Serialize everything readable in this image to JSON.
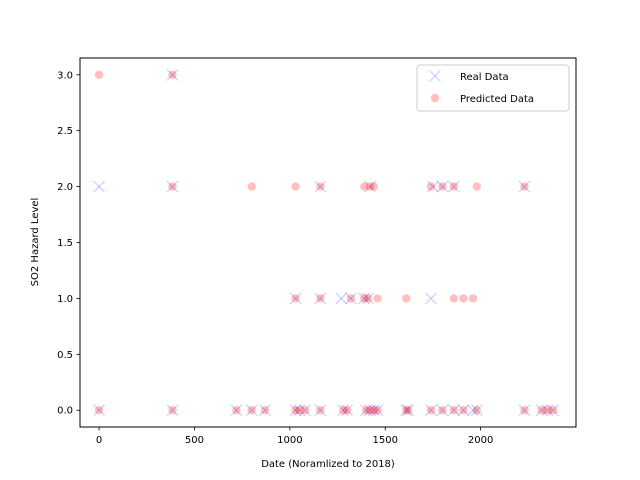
{
  "chart_data": {
    "type": "scatter",
    "title": "",
    "xlabel": "Date (Noramlized to 2018)",
    "ylabel": "SO2 Hazard Level",
    "xlim": [
      -100,
      2500
    ],
    "ylim": [
      -0.15,
      3.15
    ],
    "xticks": [
      0,
      500,
      1000,
      1500,
      2000
    ],
    "yticks": [
      0.0,
      0.5,
      1.0,
      1.5,
      2.0,
      2.5,
      3.0
    ],
    "xtick_labels": [
      "0",
      "500",
      "1000",
      "1500",
      "2000"
    ],
    "ytick_labels": [
      "0.0",
      "0.5",
      "1.0",
      "1.5",
      "2.0",
      "2.5",
      "3.0"
    ],
    "grid": false,
    "legend_position": "top-right",
    "series": [
      {
        "name": "Real Data",
        "marker": "x",
        "color": "#0000ff",
        "alpha": 0.2,
        "points": [
          [
            0,
            2
          ],
          [
            0,
            0
          ],
          [
            385,
            3
          ],
          [
            385,
            2
          ],
          [
            385,
            0
          ],
          [
            720,
            0
          ],
          [
            800,
            0
          ],
          [
            870,
            0
          ],
          [
            1030,
            1
          ],
          [
            1030,
            0
          ],
          [
            1050,
            0
          ],
          [
            1080,
            0
          ],
          [
            1160,
            2
          ],
          [
            1160,
            1
          ],
          [
            1160,
            0
          ],
          [
            1270,
            1
          ],
          [
            1280,
            0
          ],
          [
            1300,
            0
          ],
          [
            1320,
            1
          ],
          [
            1390,
            1
          ],
          [
            1410,
            1
          ],
          [
            1420,
            2
          ],
          [
            1400,
            0
          ],
          [
            1420,
            0
          ],
          [
            1440,
            0
          ],
          [
            1460,
            0
          ],
          [
            1610,
            0
          ],
          [
            1620,
            0
          ],
          [
            1740,
            1
          ],
          [
            1750,
            2
          ],
          [
            1740,
            0
          ],
          [
            1800,
            2
          ],
          [
            1800,
            0
          ],
          [
            1860,
            2
          ],
          [
            1860,
            0
          ],
          [
            1910,
            0
          ],
          [
            1960,
            0
          ],
          [
            1980,
            0
          ],
          [
            2230,
            2
          ],
          [
            2230,
            0
          ],
          [
            2320,
            0
          ],
          [
            2350,
            0
          ],
          [
            2380,
            0
          ]
        ]
      },
      {
        "name": "Predicted Data",
        "marker": "o",
        "color": "#ff0000",
        "alpha": 0.25,
        "points": [
          [
            0,
            3
          ],
          [
            0,
            0
          ],
          [
            385,
            3
          ],
          [
            385,
            2
          ],
          [
            385,
            0
          ],
          [
            720,
            0
          ],
          [
            800,
            2
          ],
          [
            800,
            0
          ],
          [
            870,
            0
          ],
          [
            1030,
            2
          ],
          [
            1030,
            1
          ],
          [
            1030,
            0
          ],
          [
            1050,
            0
          ],
          [
            1080,
            0
          ],
          [
            1160,
            2
          ],
          [
            1160,
            1
          ],
          [
            1160,
            0
          ],
          [
            1280,
            0
          ],
          [
            1300,
            0
          ],
          [
            1320,
            1
          ],
          [
            1390,
            2
          ],
          [
            1390,
            1
          ],
          [
            1410,
            1
          ],
          [
            1420,
            2
          ],
          [
            1440,
            2
          ],
          [
            1460,
            1
          ],
          [
            1400,
            0
          ],
          [
            1420,
            0
          ],
          [
            1440,
            0
          ],
          [
            1460,
            0
          ],
          [
            1610,
            1
          ],
          [
            1610,
            0
          ],
          [
            1620,
            0
          ],
          [
            1740,
            2
          ],
          [
            1740,
            0
          ],
          [
            1800,
            2
          ],
          [
            1800,
            0
          ],
          [
            1860,
            2
          ],
          [
            1860,
            1
          ],
          [
            1860,
            0
          ],
          [
            1910,
            1
          ],
          [
            1910,
            0
          ],
          [
            1960,
            1
          ],
          [
            1980,
            2
          ],
          [
            1980,
            0
          ],
          [
            2230,
            2
          ],
          [
            2230,
            0
          ],
          [
            2320,
            0
          ],
          [
            2350,
            0
          ],
          [
            2380,
            0
          ]
        ]
      }
    ]
  }
}
